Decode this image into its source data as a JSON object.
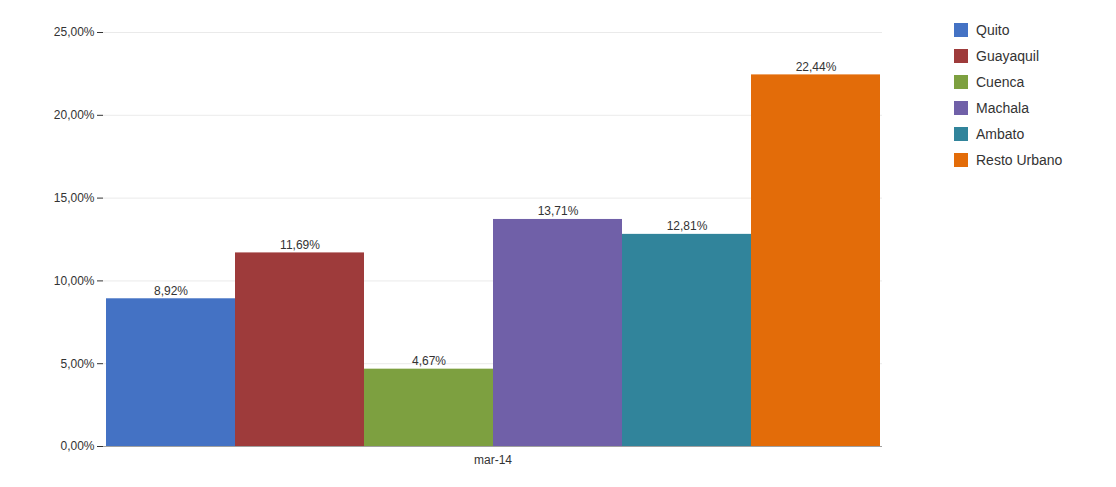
{
  "chart_data": {
    "type": "bar",
    "categories": [
      "mar-14"
    ],
    "series": [
      {
        "name": "Quito",
        "color": "#4472C4",
        "values": [
          8.92
        ],
        "value_labels": [
          "8,92%"
        ]
      },
      {
        "name": "Guayaquil",
        "color": "#9E3B3B",
        "values": [
          11.69
        ],
        "value_labels": [
          "11,69%"
        ]
      },
      {
        "name": "Cuenca",
        "color": "#7DA040",
        "values": [
          4.67
        ],
        "value_labels": [
          "4,67%"
        ]
      },
      {
        "name": "Machala",
        "color": "#7060A8",
        "values": [
          13.71
        ],
        "value_labels": [
          "13,71%"
        ]
      },
      {
        "name": "Ambato",
        "color": "#31849B",
        "values": [
          12.81
        ],
        "value_labels": [
          "12,81%"
        ]
      },
      {
        "name": "Resto Urbano",
        "color": "#E36C09",
        "values": [
          22.44
        ],
        "value_labels": [
          "22,44%"
        ]
      }
    ],
    "ylim": [
      0,
      25
    ],
    "yticks": [
      {
        "value": 0,
        "label": "0,00%"
      },
      {
        "value": 5,
        "label": "5,00%"
      },
      {
        "value": 10,
        "label": "10,00%"
      },
      {
        "value": 15,
        "label": "15,00%"
      },
      {
        "value": 20,
        "label": "20,00%"
      },
      {
        "value": 25,
        "label": "25,00%"
      }
    ],
    "grid": true,
    "legend": "right",
    "data_labels": true
  }
}
